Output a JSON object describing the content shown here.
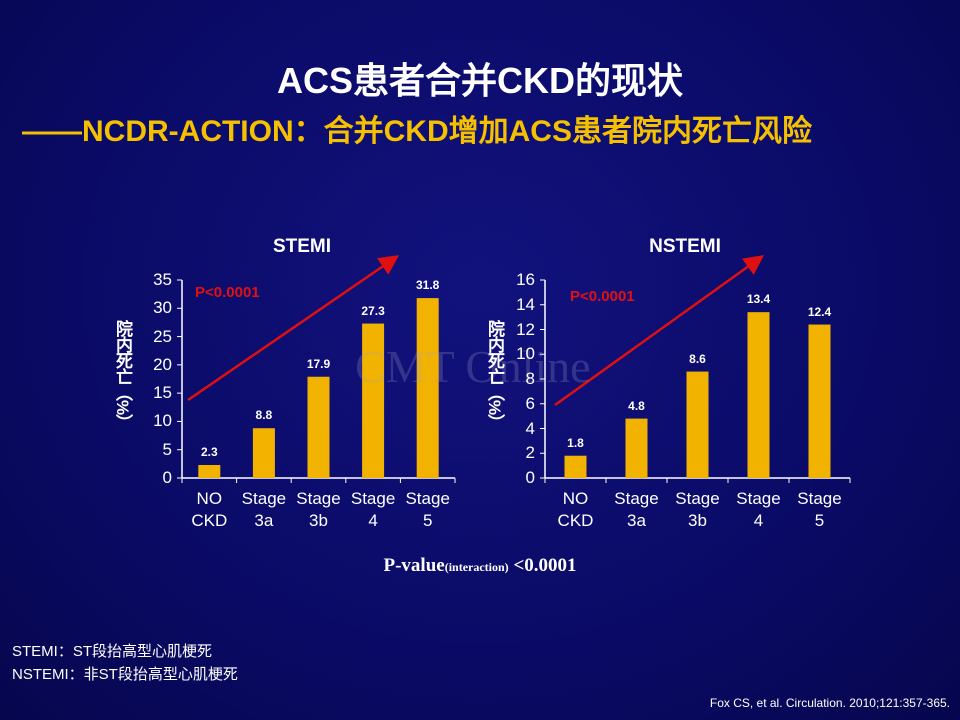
{
  "title": "ACS患者合并CKD的现状",
  "subtitle": "——NCDR-ACTION：合并CKD增加ACS患者院内死亡风险",
  "watermark": "CMT Online",
  "p_value": {
    "label": "P-value",
    "sub": "(interaction)",
    "value": "<0.0001"
  },
  "notes": [
    "STEMI：ST段抬高型心肌梗死",
    "NSTEMI：非ST段抬高型心肌梗死"
  ],
  "citation": "Fox CS, et al. Circulation. 2010;121:357-365.",
  "chart_data": [
    {
      "type": "bar",
      "title": "STEMI",
      "ylabel": "院内死亡（%）",
      "annotation": "P<0.0001",
      "categories": [
        "NO CKD",
        "Stage 3a",
        "Stage 3b",
        "Stage 4",
        "Stage 5"
      ],
      "values": [
        2.3,
        8.8,
        17.9,
        27.3,
        31.8
      ],
      "color": "#f2b300",
      "ylim": [
        0,
        35
      ],
      "yticks": [
        0,
        5,
        10,
        15,
        20,
        25,
        30,
        35
      ]
    },
    {
      "type": "bar",
      "title": "NSTEMI",
      "ylabel": "院内死亡（%）",
      "annotation": "P<0.0001",
      "categories": [
        "NO CKD",
        "Stage 3a",
        "Stage 3b",
        "Stage 4",
        "Stage 5"
      ],
      "values": [
        1.8,
        4.8,
        8.6,
        13.4,
        12.4
      ],
      "color": "#f2b300",
      "ylim": [
        0,
        16
      ],
      "yticks": [
        0,
        2,
        4,
        6,
        8,
        10,
        12,
        14,
        16
      ]
    }
  ]
}
